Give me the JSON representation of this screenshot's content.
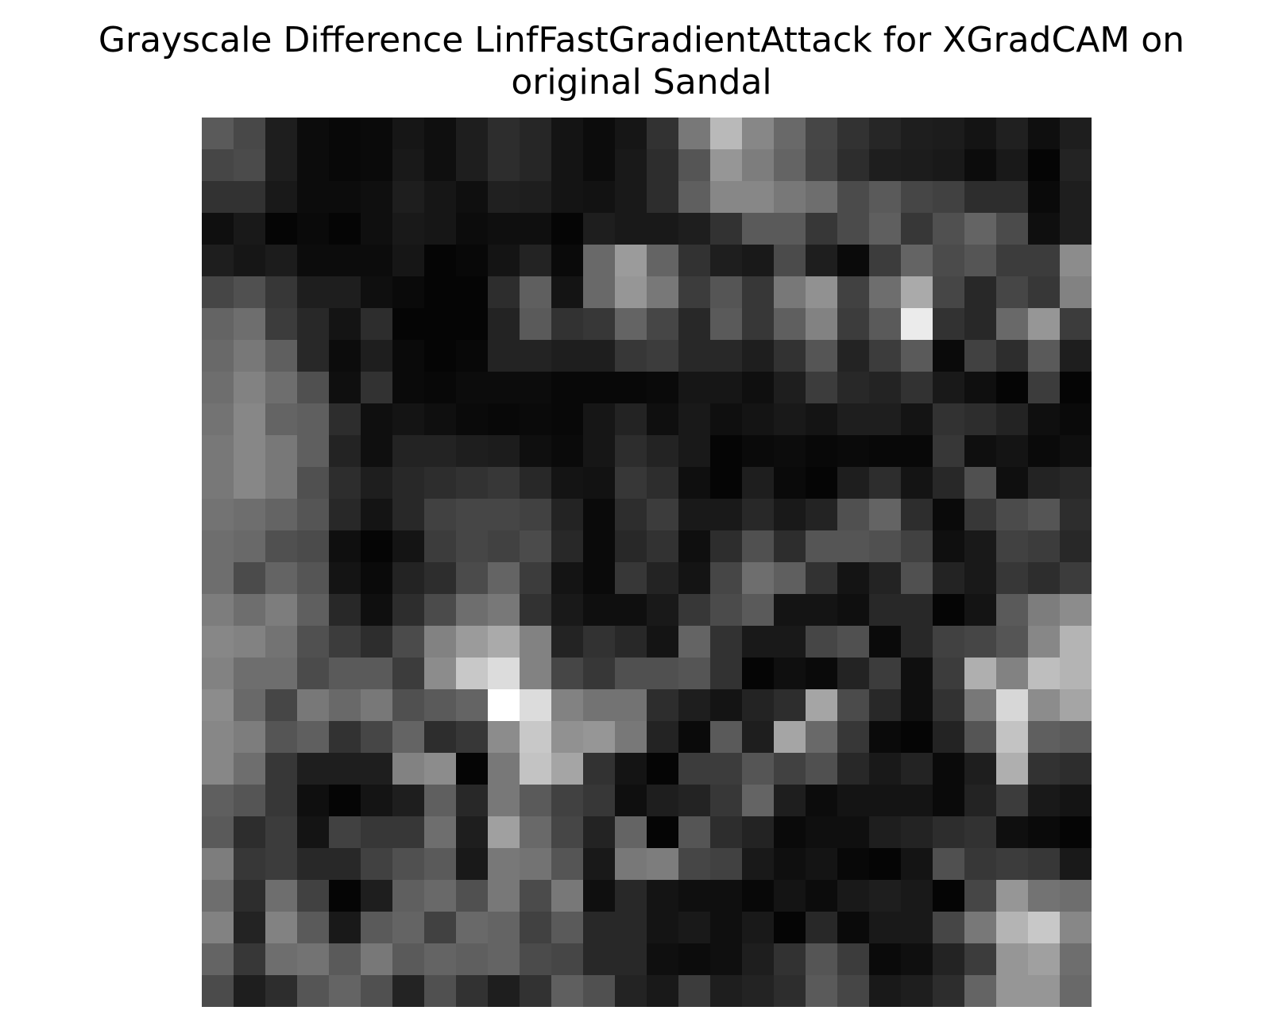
{
  "chart_data": {
    "type": "heatmap",
    "title_lines": [
      "Grayscale Difference LinfFastGradientAttack for XGradCAM on",
      "original Sandal"
    ],
    "colormap": "gray",
    "axes_visible": false,
    "rows": 28,
    "cols": 28,
    "value_range": [
      0,
      255
    ],
    "values": [
      [
        90,
        72,
        30,
        12,
        8,
        10,
        22,
        15,
        30,
        45,
        38,
        20,
        12,
        22,
        50,
        120,
        185,
        135,
        105,
        70,
        50,
        38,
        30,
        28,
        20,
        32,
        15,
        30
      ],
      [
        70,
        75,
        30,
        12,
        8,
        10,
        25,
        15,
        30,
        45,
        38,
        20,
        12,
        25,
        45,
        85,
        150,
        125,
        100,
        68,
        45,
        30,
        28,
        25,
        12,
        25,
        5,
        35
      ],
      [
        50,
        50,
        25,
        12,
        12,
        15,
        30,
        22,
        15,
        32,
        30,
        20,
        18,
        25,
        45,
        95,
        135,
        135,
        120,
        110,
        75,
        90,
        70,
        65,
        45,
        45,
        10,
        30
      ],
      [
        15,
        25,
        5,
        10,
        5,
        15,
        25,
        22,
        12,
        15,
        15,
        5,
        30,
        25,
        25,
        30,
        50,
        90,
        90,
        55,
        75,
        95,
        55,
        80,
        100,
        75,
        15,
        30
      ],
      [
        30,
        22,
        28,
        12,
        12,
        12,
        22,
        5,
        8,
        20,
        35,
        10,
        105,
        155,
        100,
        50,
        30,
        25,
        75,
        30,
        10,
        60,
        100,
        75,
        85,
        60,
        60,
        140
      ],
      [
        70,
        80,
        55,
        30,
        30,
        15,
        10,
        5,
        5,
        45,
        95,
        20,
        105,
        150,
        120,
        60,
        85,
        55,
        120,
        145,
        65,
        110,
        170,
        70,
        40,
        70,
        55,
        130
      ],
      [
        100,
        110,
        60,
        40,
        20,
        45,
        5,
        5,
        5,
        35,
        90,
        50,
        55,
        100,
        70,
        40,
        90,
        55,
        95,
        130,
        60,
        90,
        235,
        50,
        40,
        105,
        150,
        60
      ],
      [
        105,
        120,
        95,
        40,
        12,
        30,
        10,
        5,
        8,
        35,
        35,
        30,
        30,
        55,
        60,
        40,
        40,
        30,
        50,
        85,
        35,
        60,
        90,
        10,
        65,
        45,
        90,
        30
      ],
      [
        110,
        130,
        110,
        80,
        15,
        50,
        10,
        8,
        12,
        12,
        12,
        8,
        8,
        8,
        10,
        22,
        22,
        15,
        30,
        60,
        40,
        35,
        50,
        25,
        15,
        5,
        60,
        5
      ],
      [
        115,
        135,
        100,
        95,
        45,
        15,
        20,
        15,
        10,
        8,
        10,
        8,
        22,
        35,
        15,
        25,
        15,
        20,
        25,
        20,
        30,
        30,
        20,
        50,
        45,
        35,
        15,
        10
      ],
      [
        120,
        135,
        120,
        95,
        35,
        15,
        35,
        35,
        30,
        28,
        15,
        10,
        22,
        45,
        35,
        25,
        5,
        10,
        12,
        8,
        10,
        8,
        8,
        55,
        15,
        20,
        10,
        15
      ],
      [
        120,
        135,
        120,
        80,
        45,
        30,
        40,
        45,
        50,
        55,
        40,
        20,
        18,
        55,
        45,
        15,
        5,
        30,
        10,
        5,
        30,
        45,
        20,
        40,
        80,
        15,
        35,
        40
      ],
      [
        115,
        110,
        100,
        85,
        40,
        20,
        40,
        65,
        70,
        70,
        65,
        35,
        10,
        45,
        60,
        25,
        25,
        40,
        25,
        35,
        80,
        100,
        45,
        10,
        55,
        75,
        85,
        45
      ],
      [
        110,
        105,
        80,
        75,
        15,
        5,
        20,
        60,
        70,
        65,
        75,
        40,
        10,
        40,
        50,
        15,
        45,
        80,
        45,
        85,
        85,
        80,
        65,
        15,
        25,
        65,
        60,
        40
      ],
      [
        110,
        75,
        100,
        85,
        20,
        10,
        35,
        45,
        75,
        100,
        60,
        20,
        10,
        55,
        35,
        20,
        70,
        110,
        95,
        50,
        20,
        35,
        80,
        35,
        25,
        55,
        45,
        60
      ],
      [
        125,
        110,
        125,
        95,
        40,
        15,
        45,
        75,
        110,
        120,
        50,
        25,
        15,
        15,
        25,
        55,
        75,
        90,
        20,
        20,
        15,
        40,
        40,
        5,
        20,
        90,
        125,
        140
      ],
      [
        135,
        130,
        115,
        80,
        60,
        45,
        75,
        130,
        155,
        170,
        130,
        35,
        50,
        40,
        20,
        100,
        50,
        25,
        25,
        70,
        80,
        10,
        40,
        65,
        70,
        85,
        135,
        180
      ],
      [
        130,
        110,
        110,
        75,
        90,
        90,
        60,
        140,
        200,
        220,
        130,
        70,
        55,
        80,
        80,
        85,
        50,
        5,
        15,
        10,
        35,
        60,
        15,
        60,
        175,
        130,
        190,
        180
      ],
      [
        140,
        105,
        70,
        120,
        105,
        120,
        80,
        90,
        100,
        255,
        220,
        130,
        115,
        115,
        45,
        30,
        20,
        35,
        45,
        165,
        75,
        40,
        15,
        50,
        120,
        215,
        140,
        165
      ],
      [
        135,
        125,
        85,
        95,
        50,
        70,
        100,
        45,
        55,
        140,
        200,
        145,
        150,
        120,
        35,
        10,
        90,
        30,
        165,
        105,
        55,
        10,
        5,
        35,
        85,
        195,
        95,
        90
      ],
      [
        135,
        110,
        55,
        30,
        30,
        30,
        130,
        140,
        5,
        120,
        195,
        165,
        50,
        20,
        5,
        60,
        60,
        85,
        65,
        80,
        40,
        25,
        35,
        10,
        30,
        175,
        50,
        45
      ],
      [
        95,
        85,
        55,
        15,
        5,
        20,
        30,
        95,
        40,
        120,
        90,
        65,
        55,
        15,
        30,
        35,
        55,
        100,
        30,
        12,
        20,
        20,
        20,
        10,
        35,
        60,
        25,
        20
      ],
      [
        90,
        45,
        60,
        20,
        65,
        55,
        55,
        110,
        30,
        160,
        105,
        70,
        35,
        100,
        5,
        85,
        45,
        35,
        10,
        15,
        15,
        30,
        35,
        45,
        50,
        15,
        10,
        5
      ],
      [
        125,
        55,
        60,
        40,
        40,
        65,
        80,
        90,
        25,
        120,
        115,
        85,
        25,
        120,
        125,
        70,
        65,
        25,
        15,
        20,
        8,
        5,
        20,
        80,
        55,
        60,
        55,
        25
      ],
      [
        110,
        45,
        110,
        65,
        5,
        30,
        95,
        105,
        80,
        120,
        75,
        120,
        15,
        40,
        20,
        15,
        15,
        8,
        20,
        12,
        25,
        30,
        25,
        5,
        70,
        150,
        115,
        110
      ],
      [
        130,
        35,
        130,
        90,
        25,
        90,
        100,
        65,
        105,
        100,
        65,
        90,
        40,
        40,
        20,
        25,
        15,
        25,
        5,
        40,
        10,
        25,
        25,
        70,
        120,
        180,
        200,
        135
      ],
      [
        100,
        55,
        110,
        115,
        90,
        120,
        90,
        100,
        95,
        100,
        75,
        70,
        40,
        40,
        15,
        12,
        15,
        30,
        50,
        85,
        60,
        10,
        15,
        35,
        60,
        150,
        160,
        110
      ],
      [
        75,
        30,
        45,
        85,
        100,
        80,
        35,
        80,
        50,
        30,
        50,
        95,
        80,
        35,
        25,
        60,
        30,
        35,
        45,
        90,
        70,
        25,
        30,
        45,
        100,
        150,
        150,
        105
      ]
    ]
  }
}
